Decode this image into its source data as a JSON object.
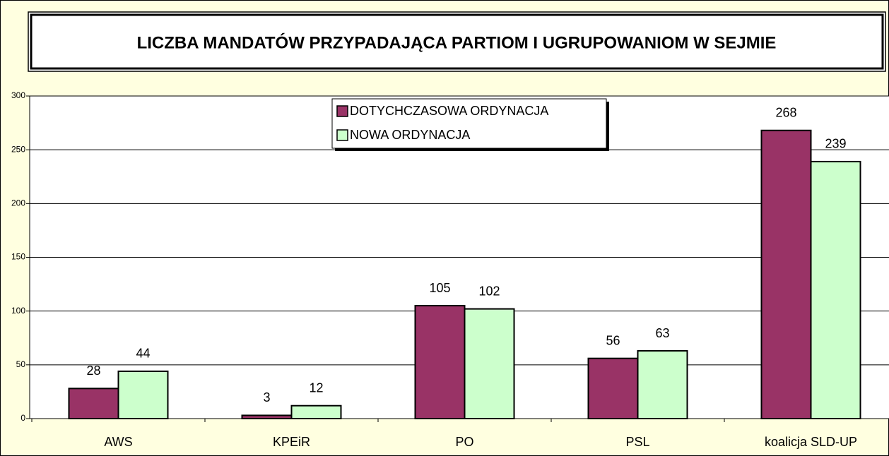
{
  "chart_data": {
    "type": "bar",
    "title": "LICZBA MANDATÓW PRZYPADAJĄCA PARTIOM I UGRUPOWANIOM W SEJMIE",
    "categories": [
      "AWS",
      "KPEiR",
      "PO",
      "PSL",
      "koalicja SLD-UP"
    ],
    "series": [
      {
        "name": "DOTYCHCZASOWA ORDYNACJA",
        "color": "#993366",
        "values": [
          28,
          3,
          105,
          56,
          268
        ]
      },
      {
        "name": "NOWA ORDYNACJA",
        "color": "#ccffcc",
        "values": [
          44,
          12,
          102,
          63,
          239
        ]
      }
    ],
    "ylim": [
      0,
      300
    ],
    "yticks": [
      0,
      50,
      100,
      150,
      200,
      250,
      300
    ],
    "grid": true
  }
}
